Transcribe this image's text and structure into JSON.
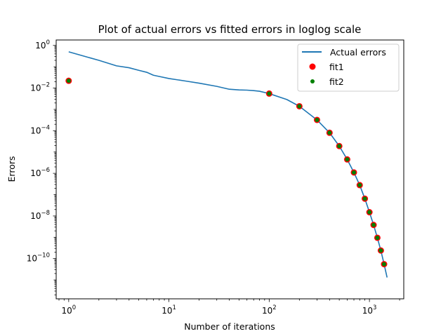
{
  "chart_data": {
    "type": "line",
    "title": "Plot of actual errors vs fitted errors in loglog scale",
    "xlabel": "Number of iterations",
    "ylabel": "Errors",
    "xscale": "log",
    "yscale": "log",
    "xlim": [
      0.75,
      2200
    ],
    "ylim": [
      1.3e-12,
      1.8
    ],
    "x_ticks": [
      {
        "base": "10",
        "exp": "0",
        "value": 1
      },
      {
        "base": "10",
        "exp": "1",
        "value": 10
      },
      {
        "base": "10",
        "exp": "2",
        "value": 100
      },
      {
        "base": "10",
        "exp": "3",
        "value": 1000
      }
    ],
    "y_ticks": [
      {
        "base": "10",
        "exp": "0",
        "value": 1
      },
      {
        "base": "10",
        "exp": "−2",
        "value": 0.01
      },
      {
        "base": "10",
        "exp": "−4",
        "value": 0.0001
      },
      {
        "base": "10",
        "exp": "−6",
        "value": 1e-06
      },
      {
        "base": "10",
        "exp": "−8",
        "value": 1e-08
      },
      {
        "base": "10",
        "exp": "−10",
        "value": 1e-10
      }
    ],
    "grid": false,
    "legend_position": "top-right",
    "series": [
      {
        "name": " Actual errors",
        "kind": "line",
        "color": "#1f77b4",
        "x": [
          1,
          2,
          3,
          4,
          5,
          6,
          7,
          8,
          10,
          15,
          20,
          30,
          40,
          50,
          60,
          70,
          80,
          100,
          150,
          200,
          300,
          400,
          500,
          600,
          700,
          800,
          900,
          1000,
          1100,
          1200,
          1300,
          1400,
          1500
        ],
        "y": [
          0.5,
          0.2,
          0.11,
          0.09,
          0.068,
          0.055,
          0.04,
          0.035,
          0.028,
          0.021,
          0.017,
          0.012,
          0.0088,
          0.0082,
          0.008,
          0.0076,
          0.0071,
          0.0055,
          0.0029,
          0.0014,
          0.00032,
          8e-05,
          1.9e-05,
          4.5e-06,
          1.1e-06,
          2.8e-07,
          6.5e-08,
          1.5e-08,
          3.8e-09,
          9.5e-10,
          2.4e-10,
          5.5e-11,
          1.3e-11
        ]
      },
      {
        "name": "fit1",
        "kind": "scatter",
        "color": "#ff0000",
        "x": [
          1,
          100,
          200,
          300,
          400,
          500,
          600,
          700,
          800,
          900,
          1000,
          1100,
          1200,
          1300,
          1400
        ],
        "y": [
          0.022,
          0.0055,
          0.0014,
          0.00032,
          8e-05,
          1.9e-05,
          4.5e-06,
          1.1e-06,
          2.8e-07,
          6.5e-08,
          1.5e-08,
          3.8e-09,
          9.5e-10,
          2.4e-10,
          5.5e-11
        ]
      },
      {
        "name": "fit2",
        "kind": "scatter",
        "color": "#008000",
        "x": [
          1,
          100,
          200,
          300,
          400,
          500,
          600,
          700,
          800,
          900,
          1000,
          1100,
          1200,
          1300,
          1400
        ],
        "y": [
          0.022,
          0.0055,
          0.0014,
          0.00032,
          8e-05,
          1.9e-05,
          4.5e-06,
          1.1e-06,
          2.8e-07,
          6.5e-08,
          1.5e-08,
          3.8e-09,
          9.5e-10,
          2.4e-10,
          5.5e-11
        ]
      }
    ]
  }
}
